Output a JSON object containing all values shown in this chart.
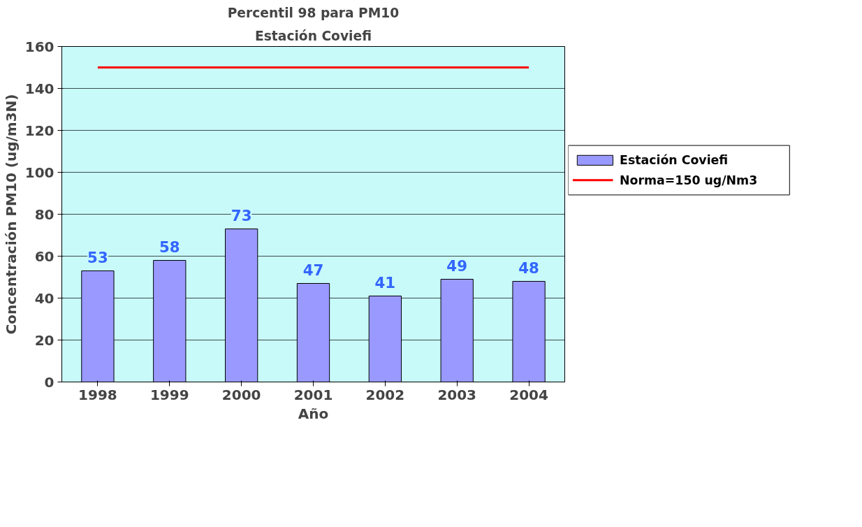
{
  "chart_data": {
    "type": "bar",
    "title": "Percentil 98 para PM10",
    "subtitle": "Estación Coviefi",
    "xlabel": "Año",
    "ylabel": "Concentración PM10 (ug/m3N)",
    "categories": [
      "1998",
      "1999",
      "2000",
      "2001",
      "2002",
      "2003",
      "2004"
    ],
    "series": [
      {
        "name": "Estación Coviefi",
        "color": "#9999ff",
        "values": [
          53,
          58,
          73,
          47,
          41,
          49,
          48
        ],
        "value_labels": [
          "53",
          "58",
          "73",
          "47",
          "41",
          "49",
          "48"
        ]
      },
      {
        "name": "Norma=150 ug/Nm3",
        "type": "line",
        "color": "#ff0000",
        "values": [
          150,
          150,
          150,
          150,
          150,
          150,
          150
        ]
      }
    ],
    "ylim": [
      0,
      160
    ],
    "yticks": [
      0,
      20,
      40,
      60,
      80,
      100,
      120,
      140,
      160
    ],
    "grid": "y",
    "legend": "right"
  }
}
